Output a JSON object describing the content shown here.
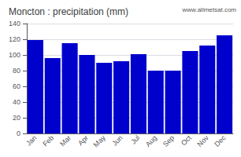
{
  "chart_data": {
    "type": "bar",
    "title": "Moncton : precipitation (mm)",
    "categories": [
      "Jan",
      "Feb",
      "Mar",
      "Apr",
      "May",
      "Jun",
      "Jul",
      "Aug",
      "Sep",
      "Oct",
      "Nov",
      "Dec"
    ],
    "values": [
      119,
      96,
      115,
      100,
      90,
      92,
      101,
      80,
      80,
      105,
      112,
      125
    ],
    "color": "#0000CC",
    "ylim": [
      0,
      140
    ],
    "yticks": [
      0,
      20,
      40,
      60,
      80,
      100,
      120,
      140
    ],
    "grid": true,
    "annotations": [
      "www.allmetsat.com"
    ]
  }
}
